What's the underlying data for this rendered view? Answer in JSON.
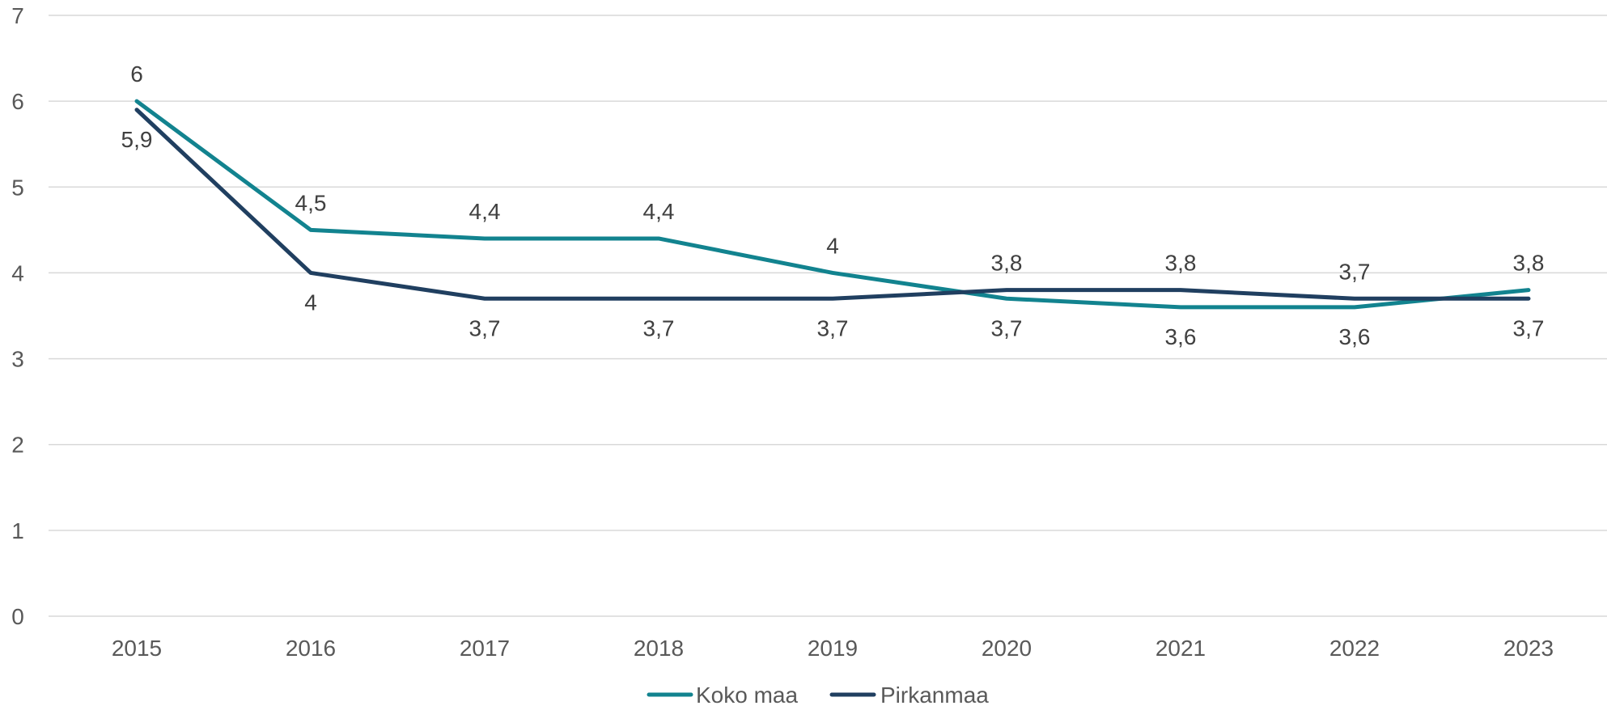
{
  "chart_data": {
    "type": "line",
    "title": "",
    "xlabel": "",
    "ylabel": "",
    "x": [
      "2015",
      "2016",
      "2017",
      "2018",
      "2019",
      "2020",
      "2021",
      "2022",
      "2023"
    ],
    "ylim": [
      0,
      7
    ],
    "yticks": [
      "0",
      "1",
      "2",
      "3",
      "4",
      "5",
      "6",
      "7"
    ],
    "grid": "horizontal",
    "legend": "bottom-center",
    "series": [
      {
        "name": "Koko maa",
        "color": "#12838f",
        "values": [
          6,
          4.5,
          4.4,
          4.4,
          4,
          3.7,
          3.6,
          3.6,
          3.8
        ],
        "labels": [
          "6",
          "4,5",
          "4,4",
          "4,4",
          "4",
          "3,7",
          "3,6",
          "3,6",
          "3,8"
        ]
      },
      {
        "name": "Pirkanmaa",
        "color": "#203f60",
        "values": [
          5.9,
          4,
          3.7,
          3.7,
          3.7,
          3.8,
          3.8,
          3.7,
          3.7
        ],
        "labels": [
          "5,9",
          "4",
          "3,7",
          "3,7",
          "3,7",
          "3,8",
          "3,8",
          "3,7",
          "3,7"
        ]
      }
    ]
  }
}
